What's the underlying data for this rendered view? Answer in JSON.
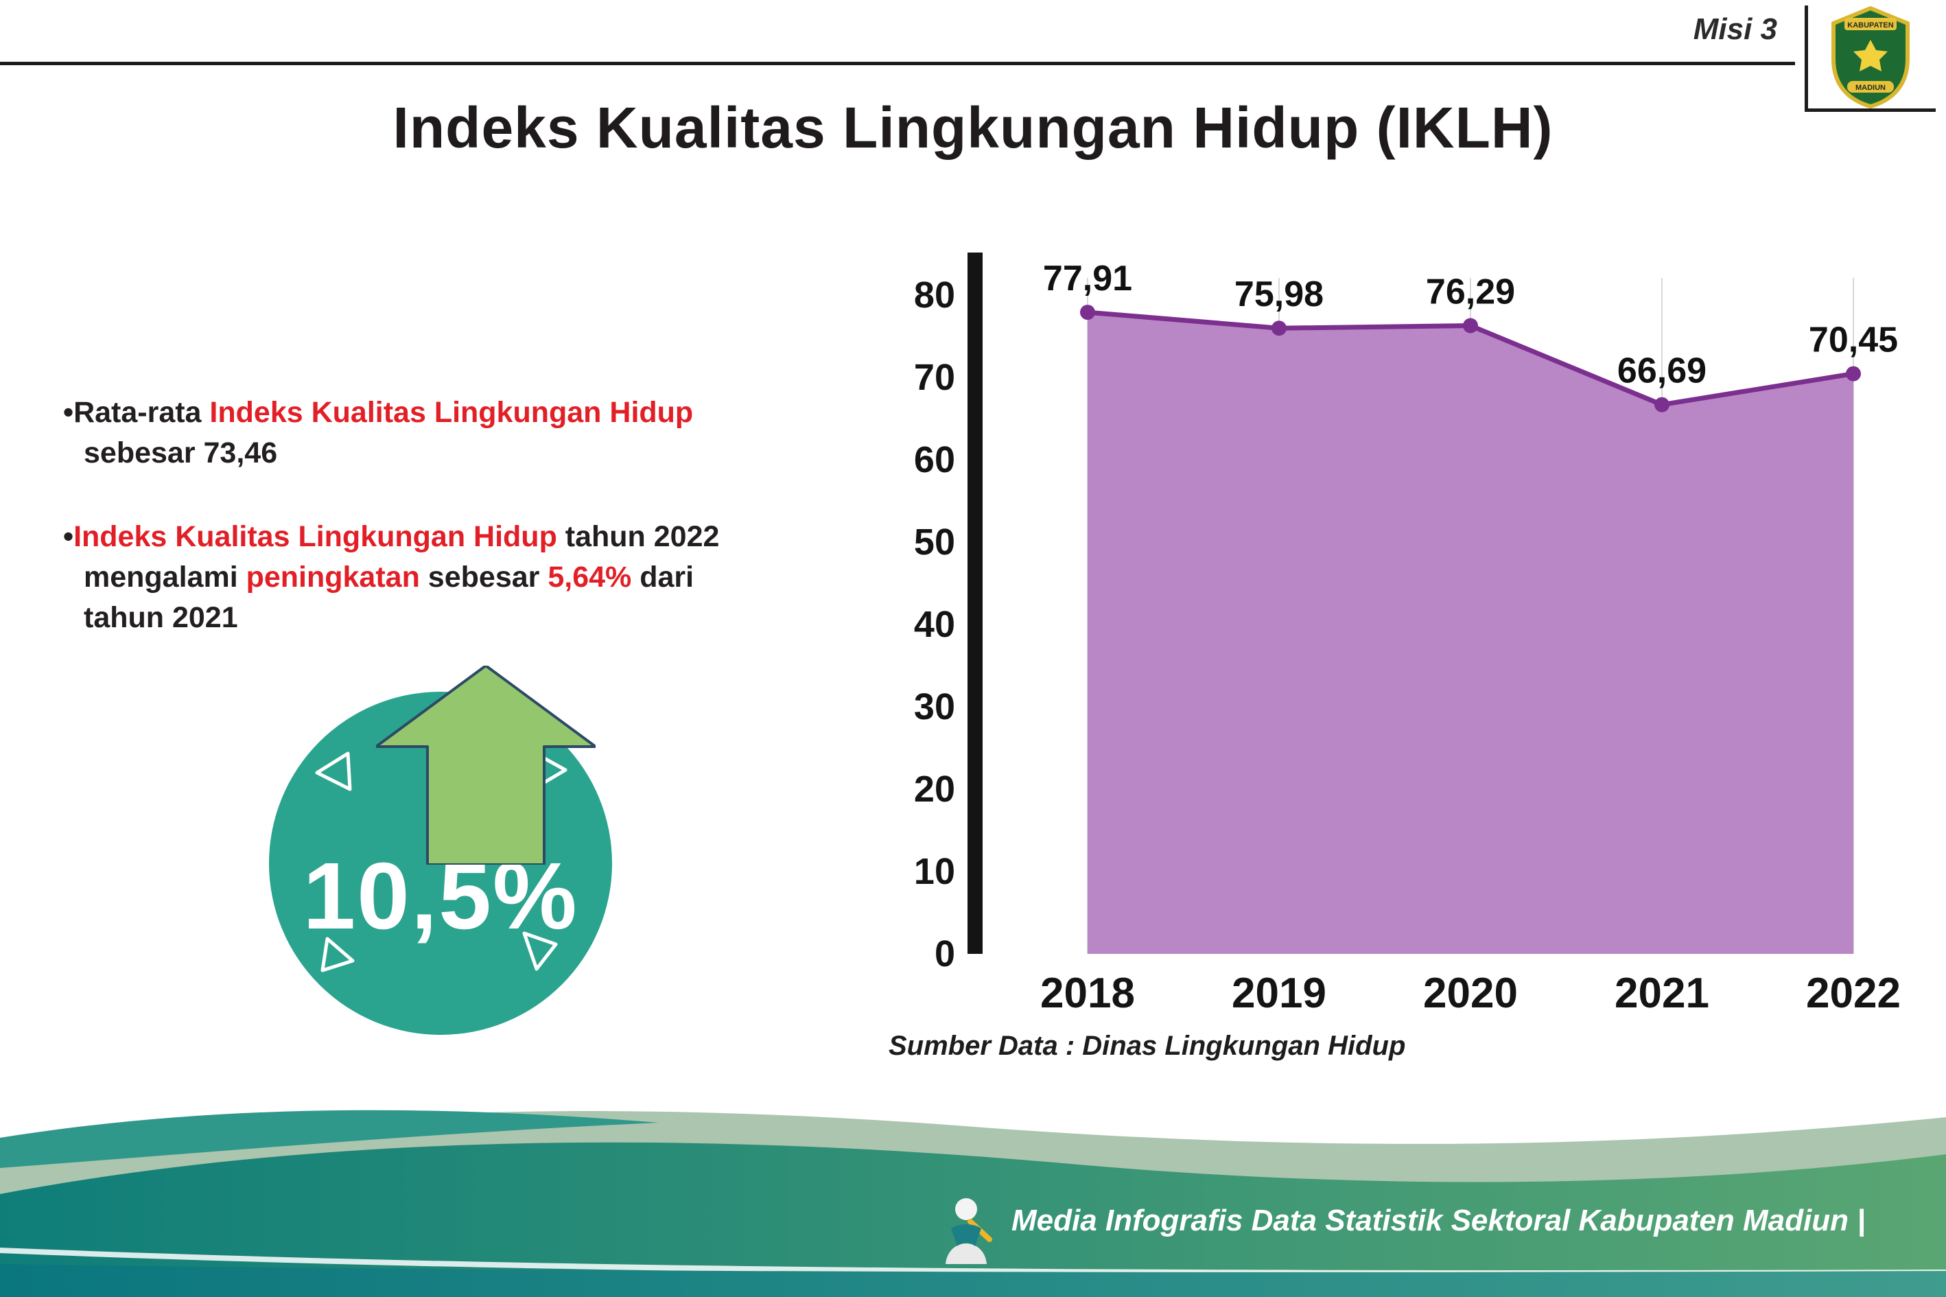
{
  "header": {
    "misi_label": "Misi 3",
    "logo": {
      "name": "kabupaten-madiun-logo",
      "top_text": "KABUPATEN",
      "bottom_text": "MADIUN"
    }
  },
  "title": "Indeks Kualitas Lingkungan Hidup (IKLH)",
  "bullets": [
    {
      "marker": "•",
      "segments": [
        {
          "text": "Rata-rata ",
          "color": "black"
        },
        {
          "text": "Indeks Kualitas Lingkungan Hidup",
          "color": "red"
        },
        {
          "br": true
        },
        {
          "text": "sebesar 73,46",
          "color": "black"
        }
      ]
    },
    {
      "marker": "•",
      "segments": [
        {
          "text": "Indeks Kualitas Lingkungan Hidup",
          "color": "red"
        },
        {
          "text": " tahun 2022",
          "color": "black"
        },
        {
          "br": true
        },
        {
          "text": "mengalami ",
          "color": "black"
        },
        {
          "text": "peningkatan",
          "color": "red"
        },
        {
          "text": " sebesar ",
          "color": "black"
        },
        {
          "text": "5,64%",
          "color": "red"
        },
        {
          "text": " dari",
          "color": "black"
        },
        {
          "br": true
        },
        {
          "text": "tahun 2021",
          "color": "black"
        }
      ]
    }
  ],
  "badge": {
    "value": "10,5%"
  },
  "chart_data": {
    "type": "area",
    "categories": [
      "2018",
      "2019",
      "2020",
      "2021",
      "2022"
    ],
    "values": [
      77.91,
      75.98,
      76.29,
      66.69,
      70.45
    ],
    "value_labels": [
      "77,91",
      "75,98",
      "76,29",
      "66,69",
      "70,45"
    ],
    "title": "",
    "xlabel": "",
    "ylabel": "",
    "ylim": [
      0,
      80
    ],
    "ytick_step": 10,
    "grid": "vertical-light",
    "legend": "none",
    "caption": "Sumber Data : Dinas Lingkungan Hidup"
  },
  "footer": {
    "text": "Media Infografis Data Statistik Sektoral Kabupaten Madiun |"
  },
  "colors": {
    "red": "#e21f26",
    "black": "#231f20",
    "badge_teal": "#2aa48e",
    "arrow_green": "#94c66d",
    "area_purple": "#ba87c6",
    "line_purple": "#7b2f8e",
    "footer_teal": "#0f7e79",
    "footer_green": "#5aa673"
  }
}
